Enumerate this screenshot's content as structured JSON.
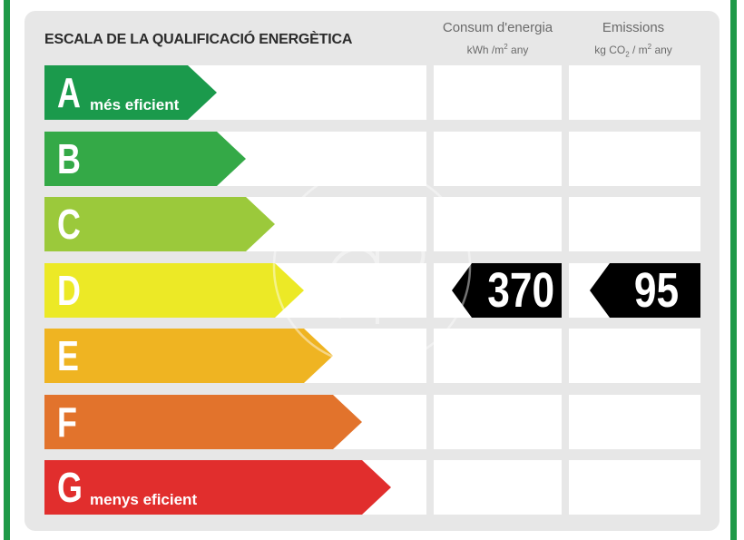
{
  "title": "ESCALA DE LA QUALIFICACIÓ ENERGÈTICA",
  "columns": {
    "consum": {
      "label": "Consum d'energia",
      "unit_prefix": "kWh /m",
      "unit_sup": "2",
      "unit_suffix": " any"
    },
    "emissions": {
      "label": "Emissions",
      "unit_prefix": "kg CO",
      "unit_sub": "2",
      "unit_mid": " / m",
      "unit_sup": "2",
      "unit_suffix": " any"
    }
  },
  "classes": [
    {
      "letter": "A",
      "label": "més eficient",
      "color": "#1b9a4c"
    },
    {
      "letter": "B",
      "label": "",
      "color": "#34a947"
    },
    {
      "letter": "C",
      "label": "",
      "color": "#9bc93b"
    },
    {
      "letter": "D",
      "label": "",
      "color": "#ece926"
    },
    {
      "letter": "E",
      "label": "",
      "color": "#efb422"
    },
    {
      "letter": "F",
      "label": "",
      "color": "#e2732c"
    },
    {
      "letter": "G",
      "label": "menys eficient",
      "color": "#e12e2d"
    }
  ],
  "rating": {
    "class": "D",
    "consum_value": "370",
    "emissions_value": "95"
  },
  "frame_color": "#1f9a48"
}
